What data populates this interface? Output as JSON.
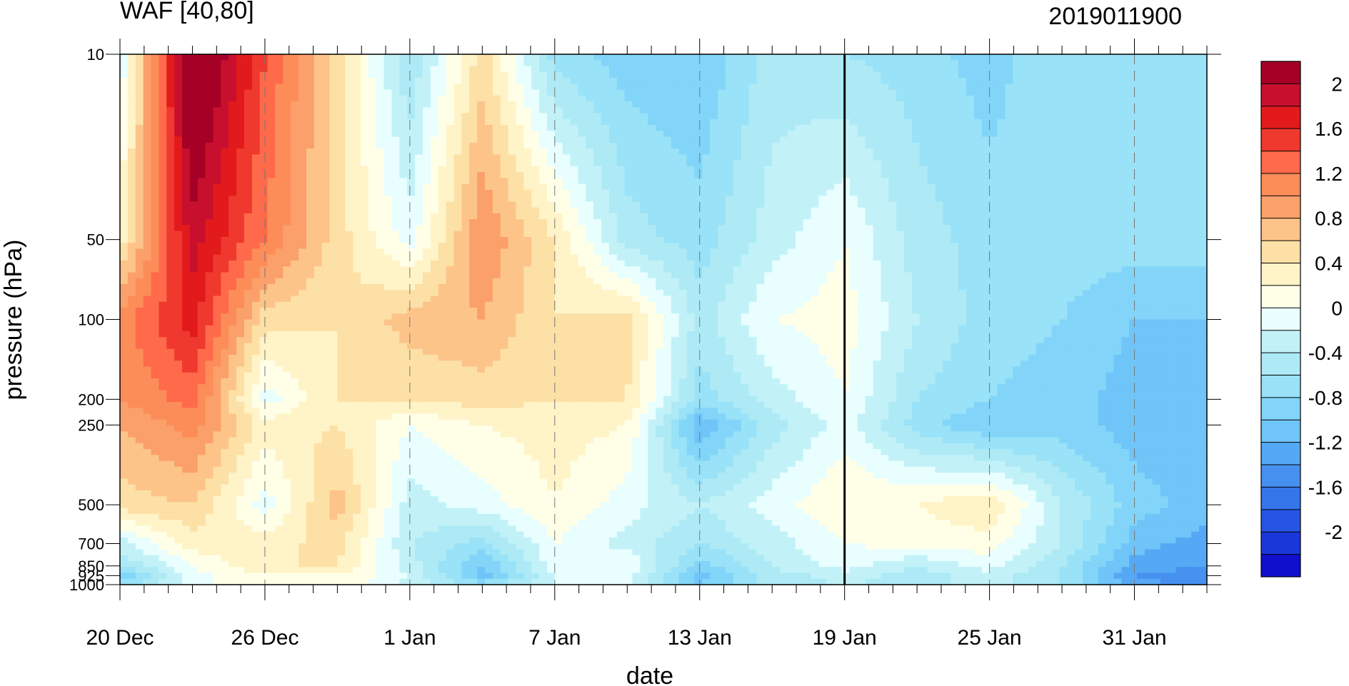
{
  "chart_data": {
    "type": "heatmap",
    "title": "WAF [40,80]",
    "subtitle": "2019011900",
    "xlabel": "date",
    "ylabel": "pressure (hPa)",
    "x_tick_labels": [
      "20 Dec",
      "26 Dec",
      "1 Jan",
      "7 Jan",
      "13 Jan",
      "19 Jan",
      "25 Jan",
      "31 Jan"
    ],
    "x_range_days": [
      0,
      45
    ],
    "y_tick_labels": [
      "10",
      "50",
      "100",
      "200",
      "250",
      "500",
      "700",
      "850",
      "925",
      "1000"
    ],
    "y_ticks_hPa": [
      10,
      50,
      100,
      200,
      250,
      500,
      700,
      850,
      925,
      1000
    ],
    "y_scale": "log",
    "ylim_hPa": [
      1000,
      10
    ],
    "reference_line_date": "19 Jan",
    "colorbar": {
      "labels": [
        "2",
        "1.6",
        "1.2",
        "0.8",
        "0.4",
        "0",
        "-0.4",
        "-0.8",
        "-1.2",
        "-1.6",
        "-2"
      ],
      "levels": [
        2.2,
        2.0,
        1.8,
        1.6,
        1.4,
        1.2,
        1.0,
        0.8,
        0.6,
        0.4,
        0.2,
        0.0,
        -0.2,
        -0.4,
        -0.6,
        -0.8,
        -1.0,
        -1.2,
        -1.4,
        -1.6,
        -1.8,
        -2.0,
        -2.2
      ],
      "colors": [
        "#a50026",
        "#c8102e",
        "#e31a1c",
        "#f0392e",
        "#ff6a4a",
        "#fc8d59",
        "#fba06a",
        "#fdc48a",
        "#fde0a5",
        "#fff3c8",
        "#ffffe8",
        "#e8feff",
        "#c2f2f8",
        "#aeeaf6",
        "#99e2f7",
        "#82d5f9",
        "#6fc4f8",
        "#55a9f4",
        "#4690ef",
        "#3575ea",
        "#2655e3",
        "#1a38da",
        "#1010cc"
      ]
    },
    "days": [
      0,
      3,
      6,
      9,
      12,
      15,
      18,
      21,
      24,
      27,
      30,
      33,
      36,
      39,
      42,
      45
    ],
    "levels_hPa": [
      10,
      50,
      100,
      200,
      250,
      500,
      700,
      850,
      925,
      1000
    ],
    "values": [
      [
        -0.1,
        2.6,
        1.5,
        0.6,
        -0.5,
        0.6,
        -0.6,
        -0.8,
        -0.9,
        -0.4,
        -0.5,
        -0.6,
        -0.8,
        -0.5,
        -0.6,
        -0.6
      ],
      [
        0.4,
        2.0,
        1.3,
        0.6,
        0.0,
        1.1,
        0.5,
        -0.4,
        -0.6,
        -0.2,
        0.1,
        -0.4,
        -0.6,
        -0.6,
        -0.6,
        -0.6
      ],
      [
        1.2,
        1.8,
        0.6,
        0.5,
        0.8,
        0.9,
        0.5,
        0.6,
        -0.4,
        0.1,
        0.2,
        -0.3,
        -0.6,
        -0.7,
        -0.9,
        -0.9
      ],
      [
        1.1,
        1.4,
        0.0,
        0.5,
        0.5,
        0.6,
        0.5,
        0.5,
        -0.6,
        -0.2,
        0.1,
        -0.5,
        -0.7,
        -0.8,
        -1.0,
        -1.1
      ],
      [
        0.9,
        1.2,
        0.4,
        0.5,
        0.1,
        0.3,
        0.4,
        0.3,
        -1.1,
        -0.4,
        0.0,
        -0.6,
        -0.9,
        -0.8,
        -1.0,
        -1.1
      ],
      [
        0.6,
        0.7,
        0.0,
        0.8,
        -0.2,
        0.0,
        0.3,
        0.0,
        -0.3,
        0.0,
        0.3,
        0.3,
        0.5,
        -0.3,
        -0.8,
        -1.0
      ],
      [
        -0.2,
        0.4,
        0.4,
        0.6,
        -0.3,
        -0.6,
        0.1,
        -0.2,
        -0.5,
        -0.2,
        0.1,
        0.2,
        0.2,
        -0.3,
        -1.0,
        -1.2
      ],
      [
        -0.5,
        0.1,
        0.5,
        0.5,
        -0.2,
        -0.9,
        0.0,
        0.1,
        -0.8,
        -0.3,
        0.0,
        -0.3,
        0.0,
        -0.5,
        -1.2,
        -1.3
      ],
      [
        -0.9,
        0.0,
        0.3,
        0.3,
        -0.1,
        -1.0,
        -0.1,
        0.0,
        -1.0,
        -0.4,
        -0.2,
        -0.4,
        -0.2,
        -0.5,
        -1.3,
        -1.4
      ],
      [
        -0.6,
        0.0,
        0.3,
        0.3,
        -0.2,
        -0.6,
        -0.1,
        -0.1,
        -0.9,
        -0.4,
        -0.3,
        -0.4,
        -0.2,
        -0.5,
        -1.2,
        -1.4
      ]
    ]
  }
}
